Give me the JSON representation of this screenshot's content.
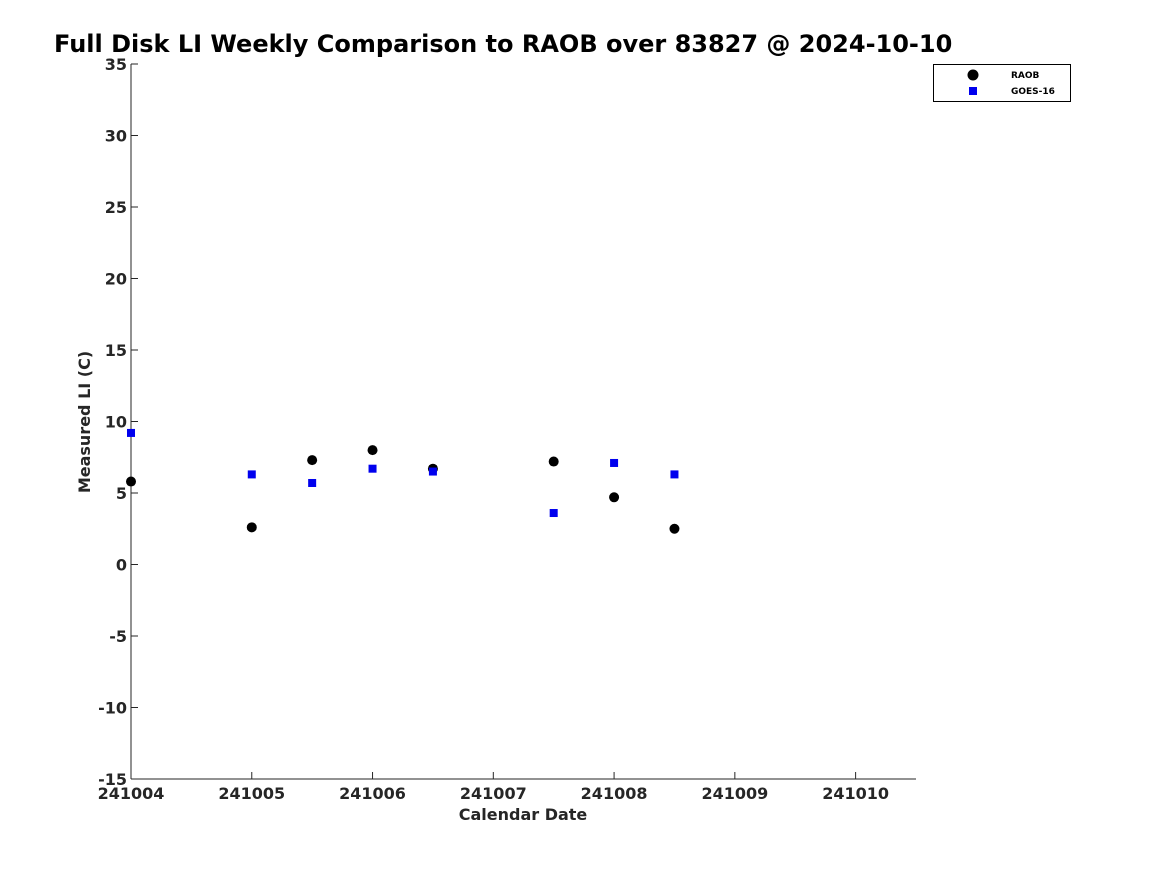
{
  "chart_data": {
    "type": "scatter",
    "title": "Full Disk LI Weekly Comparison to RAOB over 83827 @ 2024-10-10",
    "xlabel": "Calendar Date",
    "ylabel": "Measured LI (C)",
    "xlim": [
      241004,
      241010.5
    ],
    "ylim": [
      -15,
      35
    ],
    "x_ticks": [
      241004,
      241005,
      241006,
      241007,
      241008,
      241009,
      241010
    ],
    "x_tick_labels": [
      "241004",
      "241005",
      "241006",
      "241007",
      "241008",
      "241009",
      "241010"
    ],
    "y_ticks": [
      -15,
      -10,
      -5,
      0,
      5,
      10,
      15,
      20,
      25,
      30,
      35
    ],
    "y_tick_labels": [
      "-15",
      "-10",
      "-5",
      "0",
      "5",
      "10",
      "15",
      "20",
      "25",
      "30",
      "35"
    ],
    "grid": false,
    "legend_position": "top-right",
    "series": [
      {
        "name": "RAOB",
        "marker": "circle",
        "color": "#000000",
        "points": [
          {
            "x": 241004.0,
            "y": 5.8
          },
          {
            "x": 241005.0,
            "y": 2.6
          },
          {
            "x": 241005.5,
            "y": 7.3
          },
          {
            "x": 241006.0,
            "y": 8.0
          },
          {
            "x": 241006.5,
            "y": 6.7
          },
          {
            "x": 241007.5,
            "y": 7.2
          },
          {
            "x": 241008.0,
            "y": 4.7
          },
          {
            "x": 241008.5,
            "y": 2.5
          }
        ]
      },
      {
        "name": "GOES-16",
        "marker": "square",
        "color": "#0000ee",
        "points": [
          {
            "x": 241004.0,
            "y": 9.2
          },
          {
            "x": 241005.0,
            "y": 6.3
          },
          {
            "x": 241005.5,
            "y": 5.7
          },
          {
            "x": 241006.0,
            "y": 6.7
          },
          {
            "x": 241006.5,
            "y": 6.5
          },
          {
            "x": 241007.5,
            "y": 3.6
          },
          {
            "x": 241008.0,
            "y": 7.1
          },
          {
            "x": 241008.5,
            "y": 6.3
          }
        ]
      }
    ]
  }
}
